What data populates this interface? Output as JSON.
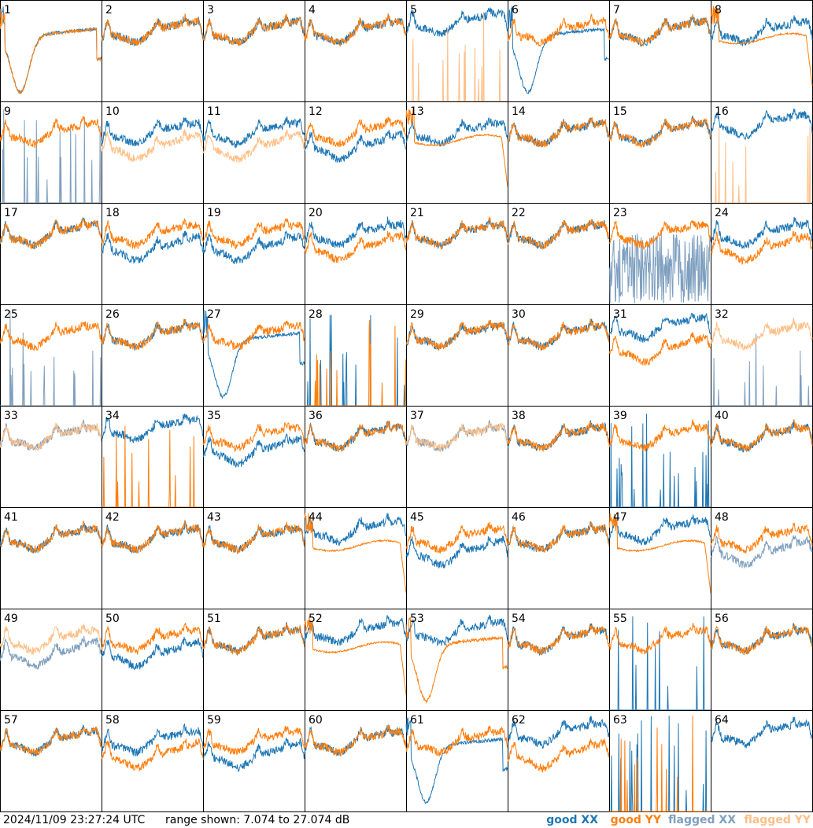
{
  "timestamp": "2024/11/09 23:27:24 UTC",
  "range_text": "range shown: 7.074 to 27.074 dB",
  "legend": [
    {
      "label": "good XX",
      "color": "#1f77b4"
    },
    {
      "label": "good YY",
      "color": "#ff7f0e"
    },
    {
      "label": "flagged XX",
      "color": "#7f9fbf"
    },
    {
      "label": "flagged YY",
      "color": "#ffbf87"
    }
  ],
  "chart_data": {
    "type": "line",
    "grid_rows": 8,
    "grid_cols": 8,
    "ylim": [
      7.074,
      27.074
    ],
    "units": "dB",
    "panels": [
      {
        "n": "1",
        "xx": "good",
        "yy": "good",
        "xx_shape": "slump",
        "yy_shape": "slump"
      },
      {
        "n": "2",
        "xx": "good",
        "yy": "good",
        "xx_shape": "normal",
        "yy_shape": "normal"
      },
      {
        "n": "3",
        "xx": "good",
        "yy": "good",
        "xx_shape": "normal",
        "yy_shape": "normal"
      },
      {
        "n": "4",
        "xx": "good",
        "yy": "good",
        "xx_shape": "normal",
        "yy_shape": "normal"
      },
      {
        "n": "5",
        "xx": "good",
        "yy": "flagged",
        "xx_shape": "high",
        "yy_shape": "spikes"
      },
      {
        "n": "6",
        "xx": "good",
        "yy": "good",
        "xx_shape": "slump",
        "yy_shape": "normal"
      },
      {
        "n": "7",
        "xx": "good",
        "yy": "good",
        "xx_shape": "normal",
        "yy_shape": "normal"
      },
      {
        "n": "8",
        "xx": "good",
        "yy": "good",
        "xx_shape": "normal",
        "yy_shape": "flat"
      },
      {
        "n": "9",
        "xx": "flagged",
        "yy": "good",
        "xx_shape": "spikes",
        "yy_shape": "normal"
      },
      {
        "n": "10",
        "xx": "good",
        "yy": "flagged",
        "xx_shape": "normal",
        "yy_shape": "low"
      },
      {
        "n": "11",
        "xx": "good",
        "yy": "flagged",
        "xx_shape": "normal",
        "yy_shape": "low"
      },
      {
        "n": "12",
        "xx": "good",
        "yy": "good",
        "xx_shape": "low",
        "yy_shape": "normal"
      },
      {
        "n": "13",
        "xx": "good",
        "yy": "good",
        "xx_shape": "normal",
        "yy_shape": "flat"
      },
      {
        "n": "14",
        "xx": "good",
        "yy": "good",
        "xx_shape": "normal",
        "yy_shape": "normal"
      },
      {
        "n": "15",
        "xx": "good",
        "yy": "good",
        "xx_shape": "normal",
        "yy_shape": "normal"
      },
      {
        "n": "16",
        "xx": "good",
        "yy": "flagged",
        "xx_shape": "high",
        "yy_shape": "spikes"
      },
      {
        "n": "17",
        "xx": "good",
        "yy": "good",
        "xx_shape": "normal",
        "yy_shape": "normal"
      },
      {
        "n": "18",
        "xx": "good",
        "yy": "good",
        "xx_shape": "low",
        "yy_shape": "normal"
      },
      {
        "n": "19",
        "xx": "good",
        "yy": "good",
        "xx_shape": "low",
        "yy_shape": "normal"
      },
      {
        "n": "20",
        "xx": "good",
        "yy": "good",
        "xx_shape": "normal",
        "yy_shape": "low"
      },
      {
        "n": "21",
        "xx": "good",
        "yy": "good",
        "xx_shape": "normal",
        "yy_shape": "normal"
      },
      {
        "n": "22",
        "xx": "good",
        "yy": "good",
        "xx_shape": "normal",
        "yy_shape": "normal"
      },
      {
        "n": "23",
        "xx": "flagged",
        "yy": "good",
        "xx_shape": "noisy",
        "yy_shape": "normal"
      },
      {
        "n": "24",
        "xx": "good",
        "yy": "good",
        "xx_shape": "normal",
        "yy_shape": "low"
      },
      {
        "n": "25",
        "xx": "flagged",
        "yy": "good",
        "xx_shape": "spikes",
        "yy_shape": "normal"
      },
      {
        "n": "26",
        "xx": "good",
        "yy": "good",
        "xx_shape": "normal",
        "yy_shape": "normal"
      },
      {
        "n": "27",
        "xx": "good",
        "yy": "good",
        "xx_shape": "slump",
        "yy_shape": "normal"
      },
      {
        "n": "28",
        "xx": "good",
        "yy": "good",
        "xx_shape": "spikes",
        "yy_shape": "spikes"
      },
      {
        "n": "29",
        "xx": "good",
        "yy": "good",
        "xx_shape": "normal",
        "yy_shape": "normal"
      },
      {
        "n": "30",
        "xx": "good",
        "yy": "good",
        "xx_shape": "normal",
        "yy_shape": "normal"
      },
      {
        "n": "31",
        "xx": "good",
        "yy": "good",
        "xx_shape": "high",
        "yy_shape": "low"
      },
      {
        "n": "32",
        "xx": "flagged",
        "yy": "flagged",
        "xx_shape": "spikes",
        "yy_shape": "normal"
      },
      {
        "n": "33",
        "xx": "flagged",
        "yy": "flagged",
        "xx_shape": "normal",
        "yy_shape": "normal"
      },
      {
        "n": "34",
        "xx": "good",
        "yy": "good",
        "xx_shape": "high",
        "yy_shape": "spikes"
      },
      {
        "n": "35",
        "xx": "good",
        "yy": "good",
        "xx_shape": "low",
        "yy_shape": "normal"
      },
      {
        "n": "36",
        "xx": "good",
        "yy": "good",
        "xx_shape": "normal",
        "yy_shape": "normal"
      },
      {
        "n": "37",
        "xx": "flagged",
        "yy": "flagged",
        "xx_shape": "normal",
        "yy_shape": "normal"
      },
      {
        "n": "38",
        "xx": "good",
        "yy": "good",
        "xx_shape": "normal",
        "yy_shape": "normal"
      },
      {
        "n": "39",
        "xx": "good",
        "yy": "good",
        "xx_shape": "spikes",
        "yy_shape": "normal"
      },
      {
        "n": "40",
        "xx": "good",
        "yy": "good",
        "xx_shape": "normal",
        "yy_shape": "normal"
      },
      {
        "n": "41",
        "xx": "good",
        "yy": "good",
        "xx_shape": "normal",
        "yy_shape": "normal"
      },
      {
        "n": "42",
        "xx": "good",
        "yy": "good",
        "xx_shape": "normal",
        "yy_shape": "normal"
      },
      {
        "n": "43",
        "xx": "good",
        "yy": "good",
        "xx_shape": "normal",
        "yy_shape": "normal"
      },
      {
        "n": "44",
        "xx": "good",
        "yy": "good",
        "xx_shape": "high",
        "yy_shape": "flat"
      },
      {
        "n": "45",
        "xx": "good",
        "yy": "good",
        "xx_shape": "low",
        "yy_shape": "normal"
      },
      {
        "n": "46",
        "xx": "good",
        "yy": "good",
        "xx_shape": "normal",
        "yy_shape": "normal"
      },
      {
        "n": "47",
        "xx": "good",
        "yy": "good",
        "xx_shape": "high",
        "yy_shape": "flat"
      },
      {
        "n": "48",
        "xx": "flagged",
        "yy": "good",
        "xx_shape": "low",
        "yy_shape": "normal"
      },
      {
        "n": "49",
        "xx": "flagged",
        "yy": "flagged",
        "xx_shape": "low",
        "yy_shape": "normal"
      },
      {
        "n": "50",
        "xx": "good",
        "yy": "good",
        "xx_shape": "low",
        "yy_shape": "normal"
      },
      {
        "n": "51",
        "xx": "good",
        "yy": "good",
        "xx_shape": "normal",
        "yy_shape": "normal"
      },
      {
        "n": "52",
        "xx": "good",
        "yy": "good",
        "xx_shape": "high",
        "yy_shape": "flat"
      },
      {
        "n": "53",
        "xx": "good",
        "yy": "good",
        "xx_shape": "high",
        "yy_shape": "slump"
      },
      {
        "n": "54",
        "xx": "good",
        "yy": "good",
        "xx_shape": "normal",
        "yy_shape": "normal"
      },
      {
        "n": "55",
        "xx": "good",
        "yy": "good",
        "xx_shape": "spikes",
        "yy_shape": "normal"
      },
      {
        "n": "56",
        "xx": "good",
        "yy": "good",
        "xx_shape": "normal",
        "yy_shape": "normal"
      },
      {
        "n": "57",
        "xx": "good",
        "yy": "good",
        "xx_shape": "normal",
        "yy_shape": "normal"
      },
      {
        "n": "58",
        "xx": "good",
        "yy": "good",
        "xx_shape": "normal",
        "yy_shape": "low"
      },
      {
        "n": "59",
        "xx": "good",
        "yy": "good",
        "xx_shape": "low",
        "yy_shape": "normal"
      },
      {
        "n": "60",
        "xx": "good",
        "yy": "good",
        "xx_shape": "normal",
        "yy_shape": "normal"
      },
      {
        "n": "61",
        "xx": "good",
        "yy": "good",
        "xx_shape": "slump",
        "yy_shape": "normal"
      },
      {
        "n": "62",
        "xx": "good",
        "yy": "good",
        "xx_shape": "high",
        "yy_shape": "low"
      },
      {
        "n": "63",
        "xx": "good",
        "yy": "good",
        "xx_shape": "spikes",
        "yy_shape": "spikes"
      },
      {
        "n": "64",
        "xx": "good",
        "yy": "good",
        "xx_shape": "high",
        "yy_shape": "none"
      }
    ]
  }
}
